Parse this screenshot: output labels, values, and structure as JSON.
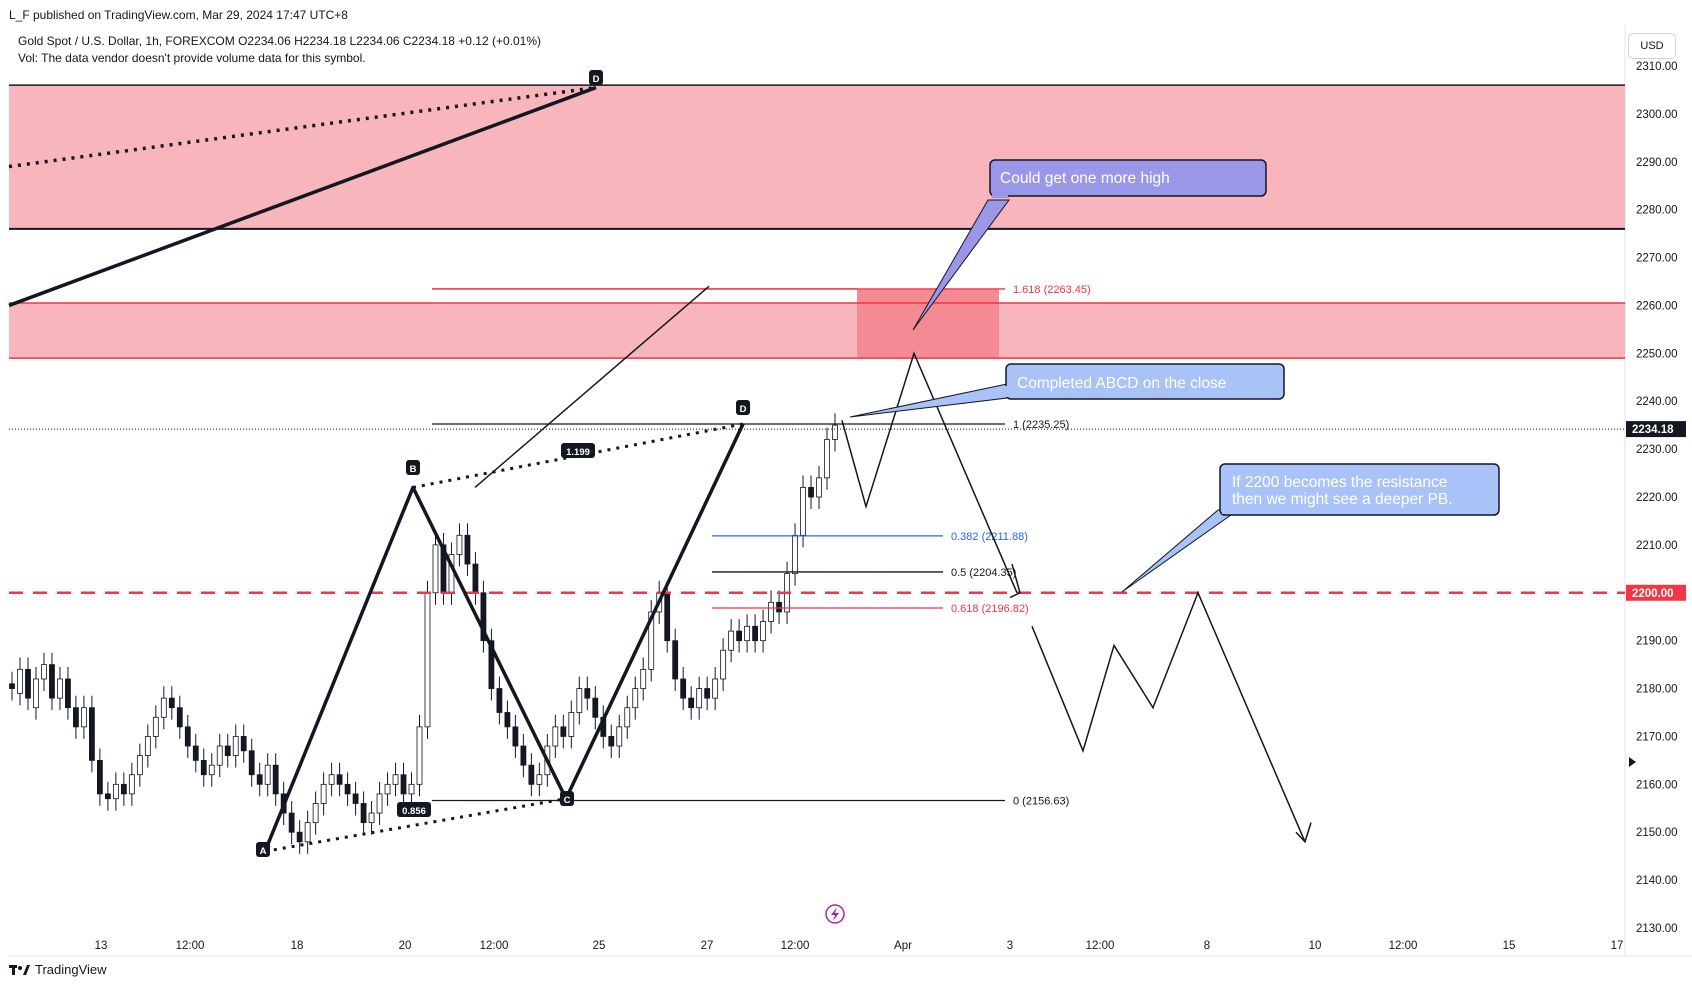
{
  "header": {
    "published_line": "L_F published on TradingView.com, Mar 29, 2024 17:47 UTC+8",
    "symbol_line": "Gold Spot / U.S. Dollar, 1h, FOREXCOM  O2234.06  H2234.18  L2234.06  C2234.18  +0.12 (+0.01%)",
    "volume_note": "Vol: The data vendor doesn't provide volume data for this symbol.",
    "currency": "USD"
  },
  "brand": "TradingView",
  "colors": {
    "zone_fill": "#f9b5bc",
    "target_fill": "#f48b94",
    "red_line": "#f23645",
    "fib_blue": "#2962ff",
    "callout_purple": "#9b97e8",
    "callout_blue": "#a9c2f7",
    "candles": "#131722"
  },
  "chart_data": {
    "type": "candlestick",
    "symbol": "Gold Spot / U.S. Dollar",
    "interval": "1h",
    "ylim": [
      2125,
      2312
    ],
    "y_ticks": [
      2130,
      2140,
      2150,
      2160,
      2170,
      2180,
      2190,
      2200,
      2210,
      2220,
      2230,
      2240,
      2250,
      2260,
      2270,
      2280,
      2290,
      2300,
      2310
    ],
    "x_ticks": [
      "13",
      "12:00",
      "18",
      "20",
      "12:00",
      "25",
      "27",
      "12:00",
      "Apr",
      "3",
      "12:00",
      "8",
      "10",
      "12:00",
      "15",
      "17"
    ],
    "last_price": 2234.18,
    "level_price": 2200.0,
    "price_path": [
      [
        2181,
        2180
      ],
      [
        2179,
        2184
      ],
      [
        2184,
        2178
      ],
      [
        2176,
        2182
      ],
      [
        2182,
        2185
      ],
      [
        2185,
        2178
      ],
      [
        2178,
        2182
      ],
      [
        2182,
        2176
      ],
      [
        2176,
        2172
      ],
      [
        2172,
        2176
      ],
      [
        2176,
        2165
      ],
      [
        2165,
        2158
      ],
      [
        2158,
        2157
      ],
      [
        2157,
        2160
      ],
      [
        2160,
        2158
      ],
      [
        2158,
        2162
      ],
      [
        2162,
        2166
      ],
      [
        2166,
        2170
      ],
      [
        2170,
        2174
      ],
      [
        2174,
        2178
      ],
      [
        2178,
        2176
      ],
      [
        2176,
        2172
      ],
      [
        2172,
        2168
      ],
      [
        2168,
        2165
      ],
      [
        2165,
        2162
      ],
      [
        2162,
        2164
      ],
      [
        2164,
        2168
      ],
      [
        2168,
        2166
      ],
      [
        2166,
        2170
      ],
      [
        2170,
        2167
      ],
      [
        2167,
        2162
      ],
      [
        2162,
        2160
      ],
      [
        2160,
        2164
      ],
      [
        2164,
        2158
      ],
      [
        2158,
        2154
      ],
      [
        2154,
        2150
      ],
      [
        2150,
        2148
      ],
      [
        2148,
        2152
      ],
      [
        2152,
        2156
      ],
      [
        2156,
        2160
      ],
      [
        2160,
        2162
      ],
      [
        2162,
        2160
      ],
      [
        2160,
        2158
      ],
      [
        2158,
        2156
      ],
      [
        2156,
        2152
      ],
      [
        2152,
        2154
      ],
      [
        2154,
        2158
      ],
      [
        2158,
        2160
      ],
      [
        2160,
        2162
      ],
      [
        2162,
        2158
      ],
      [
        2158,
        2160
      ],
      [
        2160,
        2172
      ],
      [
        2172,
        2200
      ],
      [
        2200,
        2210
      ],
      [
        2210,
        2200
      ],
      [
        2200,
        2208
      ],
      [
        2208,
        2212
      ],
      [
        2212,
        2206
      ],
      [
        2206,
        2200
      ],
      [
        2200,
        2190
      ],
      [
        2190,
        2180
      ],
      [
        2180,
        2175
      ],
      [
        2175,
        2172
      ],
      [
        2172,
        2168
      ],
      [
        2168,
        2164
      ],
      [
        2164,
        2160
      ],
      [
        2160,
        2162
      ],
      [
        2162,
        2168
      ],
      [
        2168,
        2172
      ],
      [
        2172,
        2170
      ],
      [
        2170,
        2175
      ],
      [
        2175,
        2180
      ],
      [
        2180,
        2178
      ],
      [
        2178,
        2174
      ],
      [
        2174,
        2170
      ],
      [
        2170,
        2168
      ],
      [
        2168,
        2172
      ],
      [
        2172,
        2176
      ],
      [
        2176,
        2180
      ],
      [
        2180,
        2184
      ],
      [
        2184,
        2196
      ],
      [
        2196,
        2200
      ],
      [
        2200,
        2190
      ],
      [
        2190,
        2182
      ],
      [
        2182,
        2178
      ],
      [
        2178,
        2176
      ],
      [
        2176,
        2180
      ],
      [
        2180,
        2178
      ],
      [
        2178,
        2182
      ],
      [
        2182,
        2188
      ],
      [
        2188,
        2192
      ],
      [
        2192,
        2190
      ],
      [
        2190,
        2193
      ],
      [
        2193,
        2190
      ],
      [
        2190,
        2194
      ],
      [
        2194,
        2198
      ],
      [
        2198,
        2196
      ],
      [
        2196,
        2204
      ],
      [
        2204,
        2212
      ],
      [
        2212,
        2222
      ],
      [
        2222,
        2220
      ],
      [
        2220,
        2224
      ],
      [
        2224,
        2232
      ],
      [
        2232,
        2235
      ]
    ],
    "fibonacci": [
      {
        "label": "1.618 (2263.45)",
        "value": 2263.45,
        "color": "#f23645"
      },
      {
        "label": "1 (2235.25)",
        "value": 2235.25,
        "color": "#131722"
      },
      {
        "label": "0.382 (2211.88)",
        "value": 2211.88,
        "color": "#2962ff"
      },
      {
        "label": "0.5 (2204.35)",
        "value": 2204.35,
        "color": "#131722"
      },
      {
        "label": "0.618 (2196.82)",
        "value": 2196.82,
        "color": "#f23645"
      },
      {
        "label": "0 (2156.63)",
        "value": 2156.63,
        "color": "#131722"
      }
    ],
    "zones": [
      {
        "from": 2276,
        "to": 2306,
        "color": "#f9b5bc"
      },
      {
        "from": 2249,
        "to": 2260.5,
        "color": "#f9b5bc"
      }
    ],
    "pattern_points": [
      {
        "label": "A"
      },
      {
        "label": "B"
      },
      {
        "label": "C"
      },
      {
        "label": "D"
      },
      {
        "label": "D"
      }
    ],
    "ratios": [
      "1.199",
      "0.856"
    ],
    "annotations": [
      "Could get one more high",
      "Completed ABCD on the close",
      "If 2200 becomes the resistance",
      "then we might see a deeper PB."
    ]
  }
}
